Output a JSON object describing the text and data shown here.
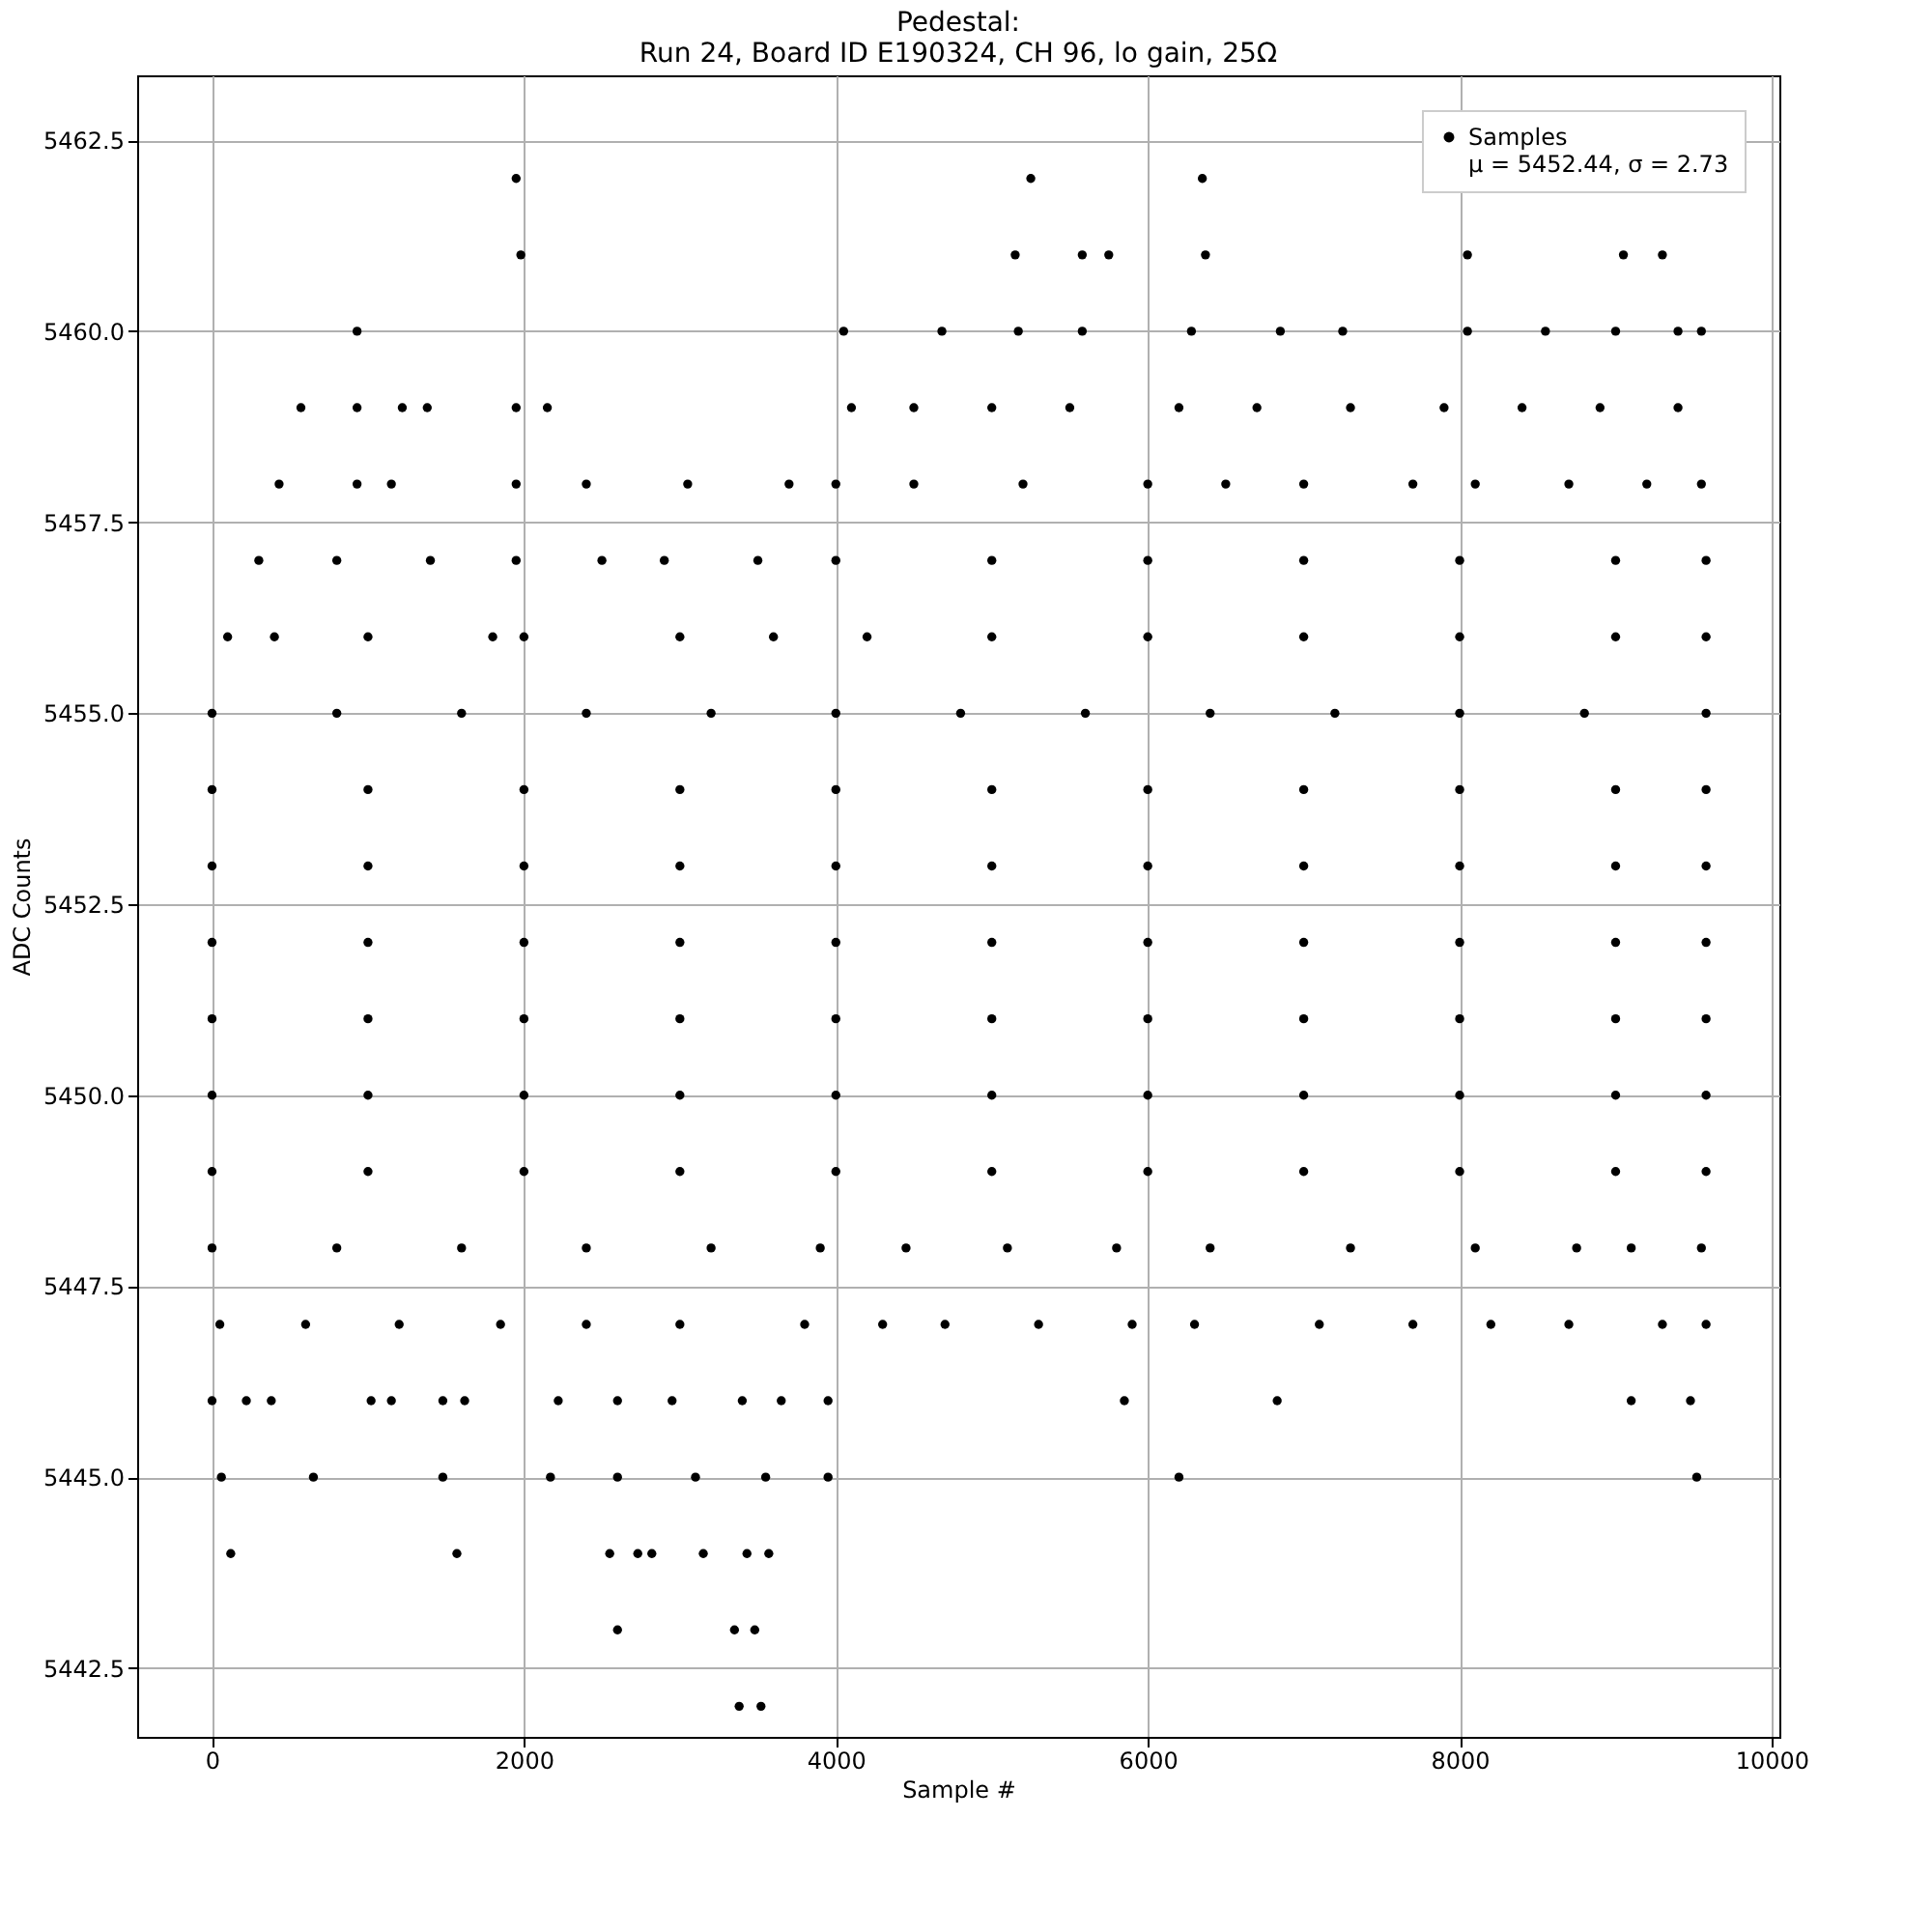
{
  "chart_data": {
    "type": "scatter",
    "title": "Pedestal:\nRun 24, Board ID E190324, CH 96, lo gain, 25Ω",
    "xlabel": "Sample #",
    "ylabel": "ADC Counts",
    "xlim": [
      -480,
      10050
    ],
    "ylim": [
      5441.6,
      5463.35
    ],
    "xticks": [
      0,
      2000,
      4000,
      6000,
      8000,
      10000
    ],
    "yticks": [
      5442.5,
      {
        "value": 5445,
        "label": "5445.0"
      },
      5447.5,
      {
        "value": 5450,
        "label": "5450.0"
      },
      5452.5,
      {
        "value": 5455,
        "label": "5455.0"
      },
      5457.5,
      {
        "value": 5460,
        "label": "5460.0"
      },
      5462.5
    ],
    "grid": true,
    "legend": "top right",
    "marker": "circle",
    "series": [
      {
        "name": "Samples\nμ = 5452.44, σ = 2.73",
        "color": "#000000",
        "x": [
          1950,
          1980,
          5250,
          6350,
          6370,
          5150,
          5580,
          5750,
          8050,
          9050,
          9300,
          930,
          4050,
          4680,
          5170,
          5580,
          6280,
          6850,
          7250,
          8050,
          8550,
          9000,
          9400,
          9550,
          3380,
          3520,
          2600,
          3350,
          3480,
          120,
          1570,
          2550,
          2730,
          2820,
          3150,
          3430,
          3570,
          60,
          650,
          1480,
          2170,
          2600,
          3100,
          3550,
          6200,
          9520,
          3950,
          0,
          220,
          380,
          1020,
          1150,
          1480,
          1620,
          2220,
          2600,
          2950,
          3400,
          3650,
          3950,
          5850,
          6830,
          9100,
          9480,
          570,
          930,
          1220,
          1380,
          1950,
          2150,
          4100,
          4500,
          5000,
          5500,
          6200,
          6700,
          7300,
          7900,
          8400,
          8900,
          9400,
          430,
          930,
          1150,
          1950,
          2400,
          3050,
          3700,
          4000,
          4500,
          5200,
          6000,
          6500,
          7000,
          7700,
          8100,
          8700,
          9200,
          9550,
          300,
          800,
          1400,
          1950,
          2500,
          2900,
          3500,
          4000,
          5000,
          6000,
          7000,
          8000,
          9000,
          9580,
          100,
          400,
          1000,
          1800,
          2000,
          3000,
          3600,
          4200,
          5000,
          6000,
          7000,
          8000,
          9000,
          9580,
          0,
          800,
          1600,
          2400,
          3200,
          4000,
          4800,
          5600,
          6400,
          7200,
          8000,
          8800,
          9580,
          0,
          1000,
          2000,
          3000,
          4000,
          5000,
          6000,
          7000,
          8000,
          9000,
          9580,
          0,
          1000,
          2000,
          3000,
          4000,
          5000,
          6000,
          7000,
          8000,
          9000,
          9580,
          0,
          1000,
          2000,
          3000,
          4000,
          5000,
          6000,
          7000,
          8000,
          9000,
          9580,
          0,
          1000,
          2000,
          3000,
          4000,
          5000,
          6000,
          7000,
          8000,
          9000,
          9580,
          0,
          1000,
          2000,
          3000,
          4000,
          5000,
          6000,
          7000,
          8000,
          9000,
          9580,
          0,
          1000,
          2000,
          3000,
          4000,
          5000,
          6000,
          7000,
          8000,
          9000,
          9580,
          0,
          800,
          1600,
          2400,
          3200,
          3900,
          4450,
          5100,
          5800,
          6400,
          7300,
          8100,
          8750,
          9100,
          9550,
          50,
          600,
          1200,
          1850,
          2400,
          3000,
          3800,
          4300,
          4700,
          5300,
          5900,
          6300,
          7100,
          7700,
          8200,
          8700,
          9300,
          9580
        ],
        "values": [
          5462,
          5461,
          5462,
          5462,
          5461,
          5461,
          5461,
          5461,
          5461,
          5461,
          5461,
          5460,
          5460,
          5460,
          5460,
          5460,
          5460,
          5460,
          5460,
          5460,
          5460,
          5460,
          5460,
          5460,
          5442,
          5442,
          5443,
          5443,
          5443,
          5444,
          5444,
          5444,
          5444,
          5444,
          5444,
          5444,
          5444,
          5445,
          5445,
          5445,
          5445,
          5445,
          5445,
          5445,
          5445,
          5445,
          5445,
          5446,
          5446,
          5446,
          5446,
          5446,
          5446,
          5446,
          5446,
          5446,
          5446,
          5446,
          5446,
          5446,
          5446,
          5446,
          5446,
          5446,
          5459,
          5459,
          5459,
          5459,
          5459,
          5459,
          5459,
          5459,
          5459,
          5459,
          5459,
          5459,
          5459,
          5459,
          5459,
          5459,
          5459,
          5458,
          5458,
          5458,
          5458,
          5458,
          5458,
          5458,
          5458,
          5458,
          5458,
          5458,
          5458,
          5458,
          5458,
          5458,
          5458,
          5458,
          5458,
          5457,
          5457,
          5457,
          5457,
          5457,
          5457,
          5457,
          5457,
          5457,
          5457,
          5457,
          5457,
          5457,
          5457,
          5456,
          5456,
          5456,
          5456,
          5456,
          5456,
          5456,
          5456,
          5456,
          5456,
          5456,
          5456,
          5456,
          5456,
          5455,
          5455,
          5455,
          5455,
          5455,
          5455,
          5455,
          5455,
          5455,
          5455,
          5455,
          5455,
          5455,
          5454,
          5454,
          5454,
          5454,
          5454,
          5454,
          5454,
          5454,
          5454,
          5454,
          5454,
          5453,
          5453,
          5453,
          5453,
          5453,
          5453,
          5453,
          5453,
          5453,
          5453,
          5453,
          5452,
          5452,
          5452,
          5452,
          5452,
          5452,
          5452,
          5452,
          5452,
          5452,
          5452,
          5451,
          5451,
          5451,
          5451,
          5451,
          5451,
          5451,
          5451,
          5451,
          5451,
          5451,
          5450,
          5450,
          5450,
          5450,
          5450,
          5450,
          5450,
          5450,
          5450,
          5450,
          5450,
          5449,
          5449,
          5449,
          5449,
          5449,
          5449,
          5449,
          5449,
          5449,
          5449,
          5449,
          5448,
          5448,
          5448,
          5448,
          5448,
          5448,
          5448,
          5448,
          5448,
          5448,
          5448,
          5448,
          5448,
          5448,
          5448,
          5447,
          5447,
          5447,
          5447,
          5447,
          5447,
          5447,
          5447,
          5447,
          5447,
          5447,
          5447,
          5447,
          5447,
          5447,
          5447,
          5447,
          5447
        ]
      }
    ]
  }
}
